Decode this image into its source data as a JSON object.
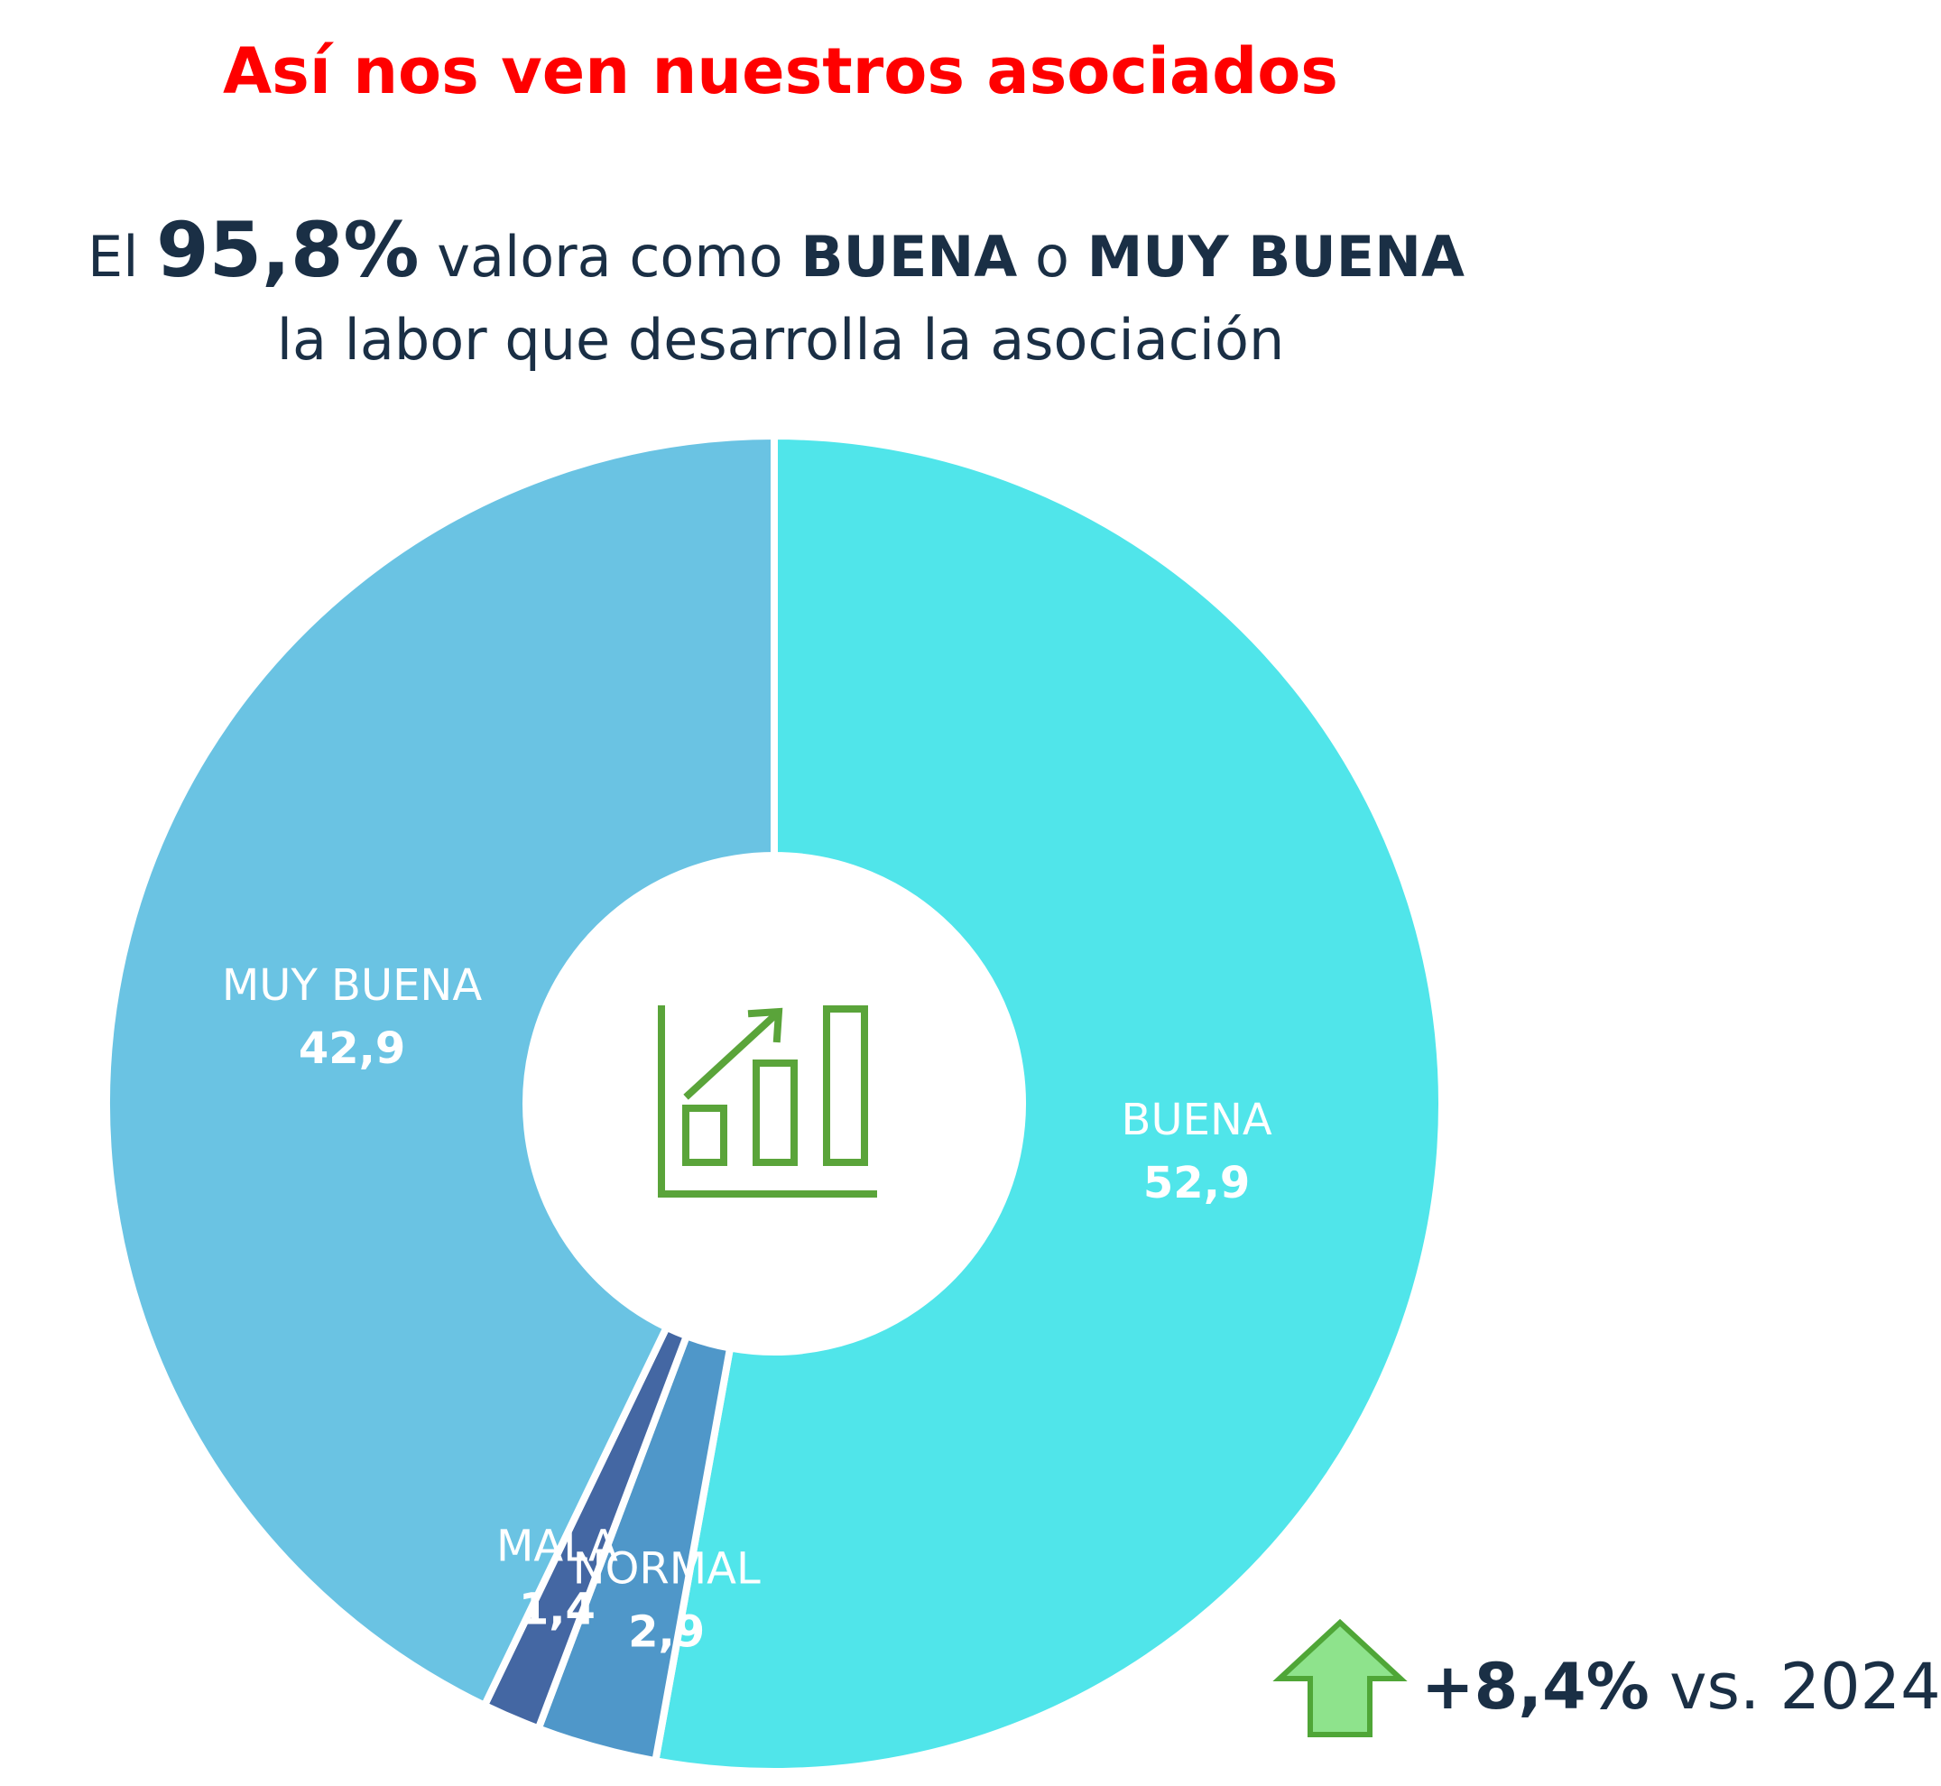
{
  "title": "Así nos ven nuestros asociados",
  "subtitle": {
    "prefix": "El",
    "highlight": "95,8%",
    "middle": "valora como",
    "buena": "BUENA",
    "connector": "o",
    "muy_buena": "MUY BUENA",
    "line2": "la labor que desarrolla la asociación"
  },
  "chart_data": {
    "type": "pie",
    "donut": true,
    "center_icon": "growth-chart-icon",
    "start": "top",
    "direction": "clockwise",
    "slices": [
      {
        "label": "BUENA",
        "value": 52.9,
        "value_text": "52,9",
        "color": "#50e5ea"
      },
      {
        "label": "NORMAL",
        "value": 2.9,
        "value_text": "2,9",
        "color": "#4f97c9"
      },
      {
        "label": "MALA",
        "value": 1.4,
        "value_text": "1,4",
        "color": "#4467a3"
      },
      {
        "label": "MUY BUENA",
        "value": 42.9,
        "value_text": "42,9",
        "color": "#6ac3e3"
      }
    ]
  },
  "change": {
    "value": "+8,4%",
    "suffix": "vs. 2024",
    "icon": "up-arrow-icon",
    "arrow_fill": "#8ee38c",
    "arrow_stroke": "#4fa637"
  },
  "icon_color": "#5aa43a"
}
